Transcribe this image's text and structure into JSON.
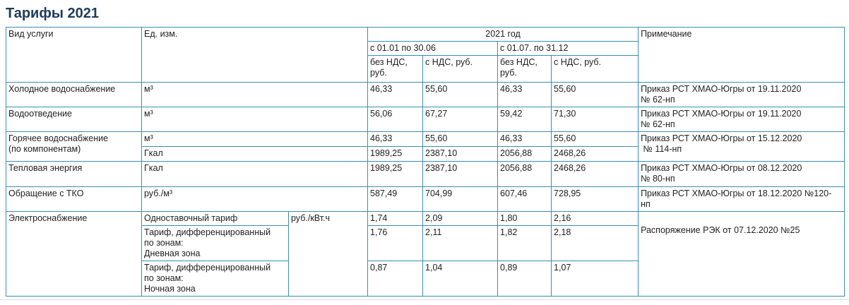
{
  "title": "Тарифы 2021",
  "header": {
    "service": "Вид услуги",
    "unit": "Ед. изм.",
    "year": "2021 год",
    "periods": [
      "с 01.01 по 30.06",
      "с 01.07. по 31.12"
    ],
    "price_columns": [
      "без НДС, руб.",
      "с НДС, руб.",
      "без НДС, руб.",
      "с НДС, руб."
    ],
    "note": "Примечание"
  },
  "rows": [
    {
      "service": [
        "Холодное водоснабжение"
      ],
      "unit": "м³",
      "prices": [
        "46,33",
        "55,60",
        "46,33",
        "55,60"
      ],
      "note": [
        "Приказ РСТ ХМАО-Югры от 19.11.2020",
        "№ 62-нп"
      ]
    },
    {
      "service": [
        "Водоотведение"
      ],
      "unit": "м³",
      "prices": [
        "56,06",
        "67,27",
        "59,42",
        "71,30"
      ],
      "note": [
        "Приказ РСТ ХМАО-Югры от 19.11.2020",
        "№ 62-нп"
      ]
    },
    {
      "service": [
        "Горячее водоснабжение",
        "(по компонентам)"
      ],
      "lines": [
        {
          "unit": "м³",
          "prices": [
            "46,33",
            "55,60",
            "46,33",
            "55,60"
          ]
        },
        {
          "unit": "Гкал",
          "prices": [
            "1989,25",
            "2387,10",
            "2056,88",
            "2468,26"
          ]
        }
      ],
      "note": [
        "Приказ РСТ ХМАО-Югры от 15.12.2020",
        "№ 114-нп"
      ]
    },
    {
      "service": [
        "Тепловая энергия"
      ],
      "unit": "Гкал",
      "prices": [
        "1989,25",
        "2387,10",
        "2056,88",
        "2468,26"
      ],
      "note": [
        "Приказ РСТ ХМАО-Югры от 08.12.2020",
        "№ 80-нп"
      ]
    },
    {
      "service": [
        "Обращение с ТКО"
      ],
      "unit": "руб./м³",
      "prices": [
        "587,49",
        "704,99",
        "607,46",
        "728,95"
      ],
      "note": [
        "Приказ РСТ ХМАО-Югры от 18.12.2020 №120-",
        "нп"
      ]
    },
    {
      "service": [
        "Электроснабжение"
      ],
      "unit": "руб./кВт.ч",
      "tariffs": [
        {
          "name": [
            "Одноставочный тариф"
          ],
          "prices": [
            "1,74",
            "2,09",
            "1,80",
            "2,16"
          ]
        },
        {
          "name": [
            "Тариф, дифференцированный",
            "по зонам:",
            "Дневная зона"
          ],
          "prices": [
            "1,76",
            "2,11",
            "1,82",
            "2,18"
          ]
        },
        {
          "name": [
            "Тариф, дифференцированный",
            "по зонам:",
            "Ночная зона"
          ],
          "prices": [
            "0,87",
            "1,04",
            "0,89",
            "1,07"
          ]
        }
      ],
      "note": [
        "Распоряжение РЭК от 07.12.2020 №25"
      ]
    }
  ]
}
